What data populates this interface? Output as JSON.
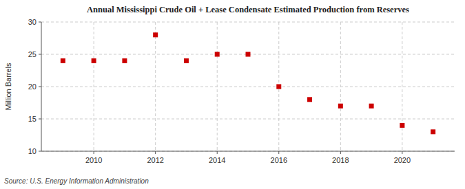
{
  "chart_data": {
    "type": "scatter",
    "title": "Annual Mississippi Crude Oil + Lease Condensate Estimated Production from Reserves",
    "ylabel": "Million Barrels",
    "annotations": [
      "Source: U.S. Energy Information Administration"
    ],
    "x": [
      2009,
      2010,
      2011,
      2012,
      2013,
      2014,
      2015,
      2016,
      2017,
      2018,
      2019,
      2020,
      2021
    ],
    "values": [
      24.0,
      24.0,
      24.0,
      28.0,
      24.0,
      25.0,
      25.0,
      20.0,
      18.0,
      17.0,
      17.0,
      14.0,
      13.0
    ],
    "color": "#cc0000",
    "marker": "square",
    "xlim": [
      2008.3,
      2021.7
    ],
    "xticks": [
      2010,
      2012,
      2014,
      2016,
      2018,
      2020
    ],
    "ylim": [
      10,
      30
    ],
    "yticks": [
      10,
      15,
      20,
      25,
      30
    ],
    "grid": true
  }
}
